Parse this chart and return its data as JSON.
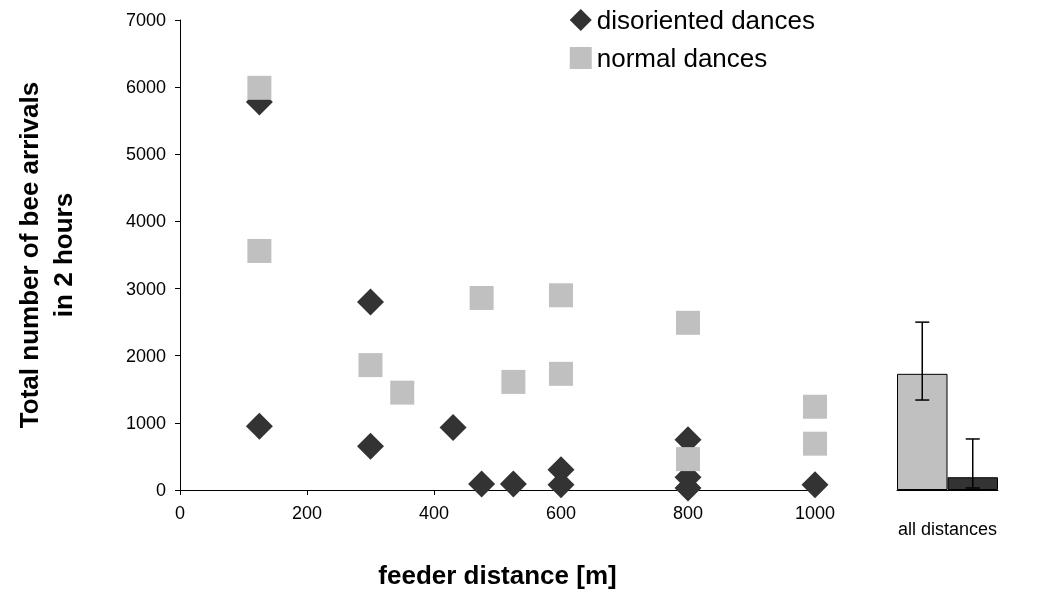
{
  "chart_data": [
    {
      "type": "scatter",
      "xlabel": "feeder distance [m]",
      "ylabel": "Total number of bee arrivals\nin 2 hours",
      "xlim": [
        0,
        1000
      ],
      "xticks": [
        0,
        200,
        400,
        600,
        800,
        1000
      ],
      "ylim": [
        0,
        7000
      ],
      "yticks": [
        0,
        1000,
        2000,
        3000,
        4000,
        5000,
        6000,
        7000
      ],
      "legend": "top right",
      "grid": false,
      "series": [
        {
          "name": "disoriented dances",
          "color": "#333333",
          "marker": "diamond",
          "x": [
            125,
            125,
            300,
            300,
            430,
            475,
            525,
            600,
            600,
            800,
            800,
            800,
            1000
          ],
          "values": [
            5780,
            950,
            2800,
            650,
            930,
            90,
            90,
            300,
            80,
            750,
            190,
            30,
            80
          ]
        },
        {
          "name": "normal dances",
          "color": "#c0c0c0",
          "marker": "square",
          "x": [
            125,
            125,
            300,
            350,
            475,
            525,
            600,
            600,
            800,
            800,
            1000,
            1000
          ],
          "values": [
            5990,
            3560,
            1860,
            1450,
            2860,
            1610,
            2900,
            1730,
            2490,
            460,
            1240,
            690
          ]
        }
      ]
    },
    {
      "type": "bar",
      "categories": [
        "all distances"
      ],
      "ylim": [
        0,
        7000
      ],
      "tick_labels": "x",
      "legend": false,
      "series": [
        {
          "color": "#c0c0c0",
          "values": [
            1730
          ],
          "errors": [
            [
              1340,
              2500
            ]
          ]
        },
        {
          "color": "#333333",
          "values": [
            190
          ],
          "errors": [
            [
              30,
              760
            ]
          ]
        }
      ]
    }
  ]
}
